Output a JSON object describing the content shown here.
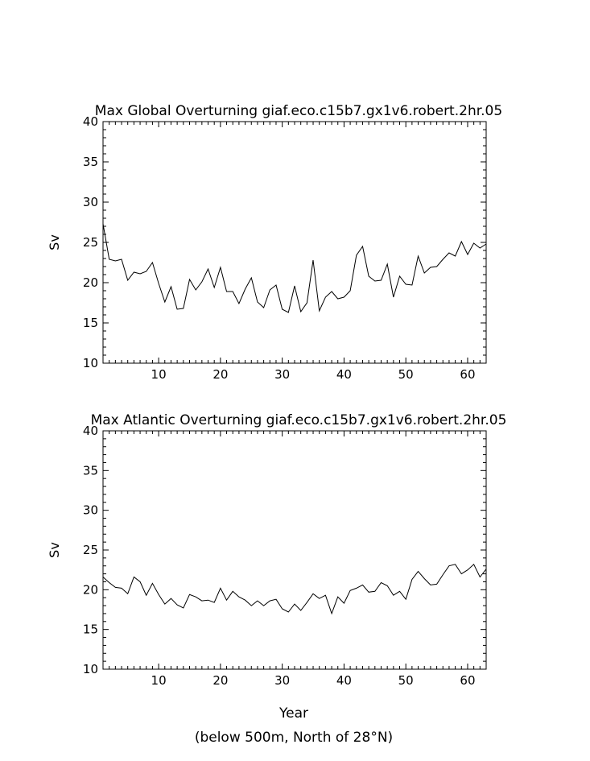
{
  "figure": {
    "xlabel": "Year",
    "footnote": "(below 500m, North of 28°N)"
  },
  "chart_data": [
    {
      "type": "line",
      "title": "Max Global Overturning giaf.eco.c15b7.gx1v6.robert.2hr.05",
      "xlabel": "",
      "ylabel": "Sv",
      "xlim": [
        1,
        63
      ],
      "ylim": [
        10,
        40
      ],
      "xticks": [
        10,
        20,
        30,
        40,
        50,
        60
      ],
      "yticks": [
        10,
        15,
        20,
        25,
        30,
        35,
        40
      ],
      "grid": false,
      "line_color": "#000000",
      "series": [
        {
          "x": [
            1,
            2,
            3,
            4,
            5,
            6,
            7,
            8,
            9,
            10,
            11,
            12,
            13,
            14,
            15,
            16,
            17,
            18,
            19,
            20,
            21,
            22,
            23,
            24,
            25,
            26,
            27,
            28,
            29,
            30,
            31,
            32,
            33,
            34,
            35,
            36,
            37,
            38,
            39,
            40,
            41,
            42,
            43,
            44,
            45,
            46,
            47,
            48,
            49,
            50,
            51,
            52,
            53,
            54,
            55,
            56,
            57,
            58,
            59,
            60,
            61,
            62,
            63
          ],
          "values": [
            27.3,
            22.9,
            22.7,
            22.9,
            20.3,
            21.3,
            21.1,
            21.4,
            22.5,
            19.9,
            17.6,
            19.5,
            16.7,
            16.8,
            20.4,
            19.1,
            20.1,
            21.7,
            19.4,
            21.9,
            18.9,
            18.9,
            17.4,
            19.2,
            20.6,
            17.6,
            16.9,
            19.1,
            19.7,
            16.7,
            16.3,
            19.6,
            16.4,
            17.5,
            22.8,
            16.5,
            18.2,
            18.9,
            18.0,
            18.2,
            19.0,
            23.4,
            24.5,
            20.8,
            20.2,
            20.3,
            22.3,
            18.2,
            20.8,
            19.8,
            19.7,
            23.3,
            21.2,
            21.9,
            22.0,
            22.9,
            23.7,
            23.3,
            25.1,
            23.5,
            24.9,
            24.3,
            24.8
          ]
        }
      ]
    },
    {
      "type": "line",
      "title": "Max Atlantic Overturning giaf.eco.c15b7.gx1v6.robert.2hr.05",
      "xlabel": "Year",
      "ylabel": "Sv",
      "xlim": [
        1,
        63
      ],
      "ylim": [
        10,
        40
      ],
      "xticks": [
        10,
        20,
        30,
        40,
        50,
        60
      ],
      "yticks": [
        10,
        15,
        20,
        25,
        30,
        35,
        40
      ],
      "grid": false,
      "line_color": "#000000",
      "series": [
        {
          "x": [
            1,
            2,
            3,
            4,
            5,
            6,
            7,
            8,
            9,
            10,
            11,
            12,
            13,
            14,
            15,
            16,
            17,
            18,
            19,
            20,
            21,
            22,
            23,
            24,
            25,
            26,
            27,
            28,
            29,
            30,
            31,
            32,
            33,
            34,
            35,
            36,
            37,
            38,
            39,
            40,
            41,
            42,
            43,
            44,
            45,
            46,
            47,
            48,
            49,
            50,
            51,
            52,
            53,
            54,
            55,
            56,
            57,
            58,
            59,
            60,
            61,
            62,
            63
          ],
          "values": [
            21.6,
            20.9,
            20.3,
            20.2,
            19.5,
            21.6,
            21.0,
            19.3,
            20.8,
            19.4,
            18.2,
            18.9,
            18.1,
            17.7,
            19.4,
            19.1,
            18.6,
            18.7,
            18.4,
            20.2,
            18.7,
            19.8,
            19.1,
            18.7,
            18.0,
            18.6,
            18.0,
            18.6,
            18.8,
            17.6,
            17.2,
            18.2,
            17.4,
            18.4,
            19.5,
            18.9,
            19.3,
            17.0,
            19.1,
            18.3,
            19.9,
            20.2,
            20.6,
            19.7,
            19.8,
            20.9,
            20.5,
            19.3,
            19.8,
            18.8,
            21.3,
            22.3,
            21.4,
            20.6,
            20.7,
            21.9,
            23.0,
            23.2,
            22.0,
            22.5,
            23.2,
            21.6,
            22.6
          ]
        }
      ]
    }
  ]
}
